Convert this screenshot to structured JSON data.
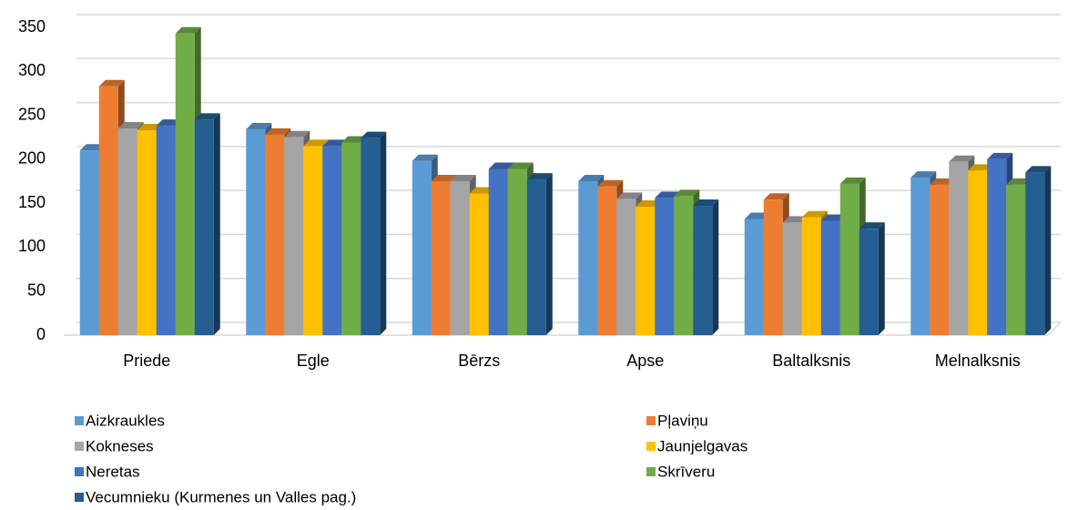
{
  "chart_data": {
    "type": "bar3d",
    "categories": [
      "Priede",
      "Egle",
      "Bērzs",
      "Apse",
      "Baltalksnis",
      "Melnalksnis"
    ],
    "series": [
      {
        "name": "Aizkraukles",
        "color": "#5b9bd5",
        "values": [
          210,
          234,
          198,
          175,
          132,
          179
        ]
      },
      {
        "name": "Pļaviņu",
        "color": "#ed7d31",
        "values": [
          283,
          228,
          175,
          169,
          154,
          171
        ]
      },
      {
        "name": "Kokneses",
        "color": "#a5a5a5",
        "values": [
          235,
          225,
          175,
          155,
          128,
          197
        ]
      },
      {
        "name": "Jaunjelgavas",
        "color": "#ffc000",
        "values": [
          233,
          215,
          161,
          146,
          134,
          187
        ]
      },
      {
        "name": "Neretas",
        "color": "#4472c4",
        "values": [
          238,
          215,
          189,
          156,
          130,
          200
        ]
      },
      {
        "name": "Skrīveru",
        "color": "#70ad47",
        "values": [
          343,
          219,
          189,
          158,
          172,
          171
        ]
      },
      {
        "name": "Vecumnieku (Kurmenes un Valles pag.)",
        "color": "#255e91",
        "values": [
          245,
          224,
          177,
          147,
          121,
          185
        ]
      }
    ],
    "ylim": [
      0,
      350
    ],
    "yticks": [
      0,
      50,
      100,
      150,
      200,
      250,
      300,
      350
    ],
    "grid": true,
    "legend": "bottom"
  }
}
